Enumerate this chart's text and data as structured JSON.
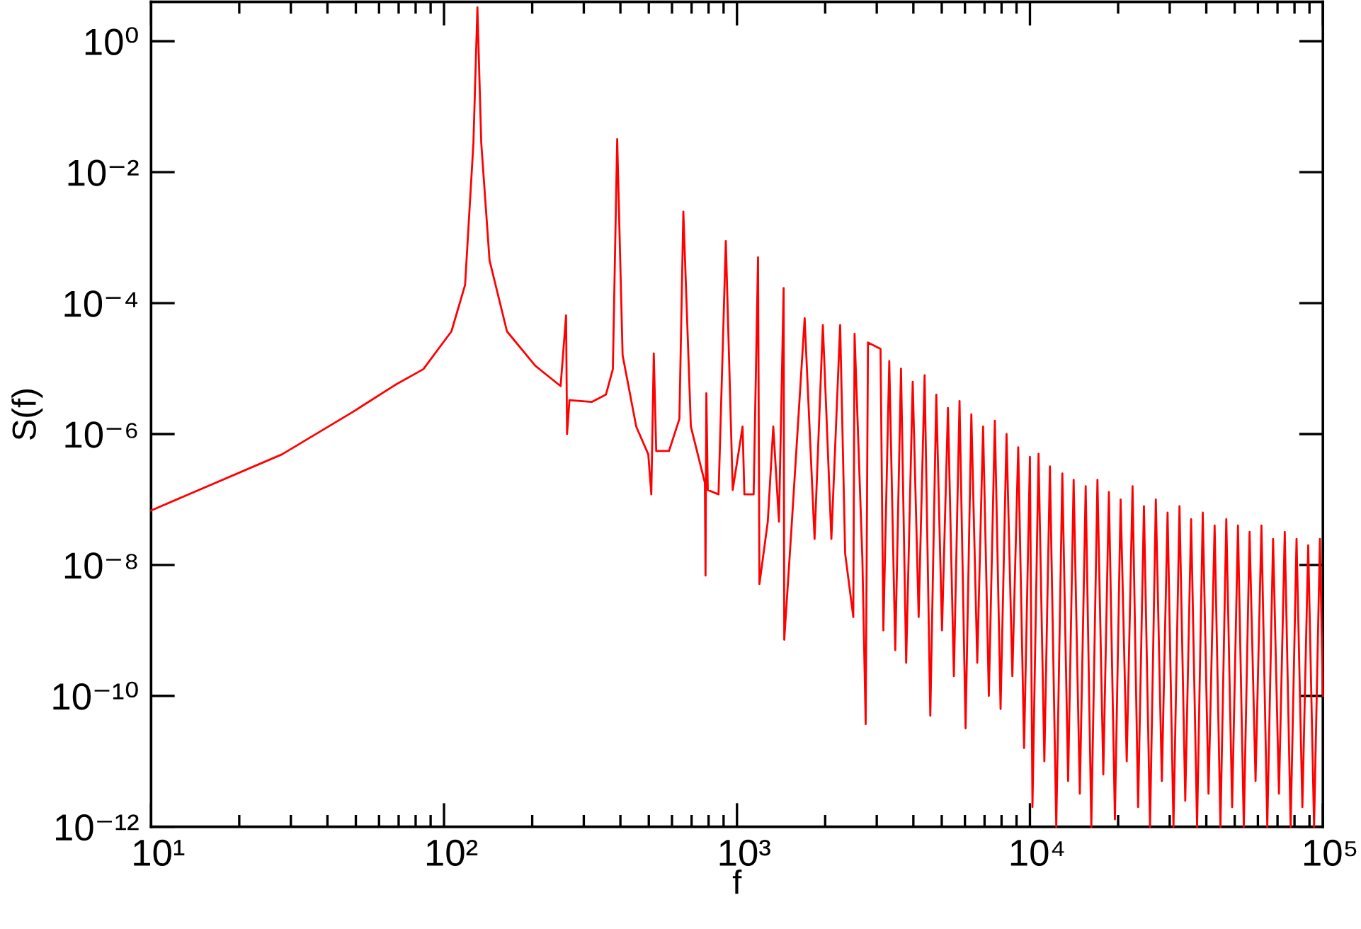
{
  "chart_data": {
    "type": "line",
    "xlabel": "f",
    "ylabel": "S(f)",
    "log": "xy",
    "grid": false,
    "legend": false,
    "marker": "none",
    "line_style": "solid",
    "xlim": [
      10,
      100000
    ],
    "ylim": [
      1e-12,
      4
    ],
    "xticks": [
      {
        "value": 10,
        "label": "10¹"
      },
      {
        "value": 100,
        "label": "10²"
      },
      {
        "value": 1000,
        "label": "10³"
      },
      {
        "value": 10000,
        "label": "10⁴"
      },
      {
        "value": 100000,
        "label": "10⁵"
      }
    ],
    "yticks": [
      {
        "value": 1e-12,
        "label": "10⁻¹²"
      },
      {
        "value": 1e-10,
        "label": "10⁻¹⁰"
      },
      {
        "value": 1e-08,
        "label": "10⁻⁸"
      },
      {
        "value": 1e-06,
        "label": "10⁻⁶"
      },
      {
        "value": 0.0001,
        "label": "10⁻⁴"
      },
      {
        "value": 0.01,
        "label": "10⁻²"
      },
      {
        "value": 1,
        "label": "10⁰"
      }
    ],
    "series": [
      {
        "color": "#ff0000",
        "x": [
          10,
          28,
          49,
          68,
          85,
          106,
          118,
          126,
          130,
          134,
          143,
          164,
          205,
          250,
          261,
          263,
          268,
          320,
          357,
          377,
          390,
          407,
          453,
          498,
          510,
          520,
          530,
          586,
          636,
          656,
          696,
          777,
          781,
          786,
          795,
          865,
          916,
          967,
          1045,
          1060,
          1140,
          1180,
          1193,
          1274,
          1330,
          1391,
          1443,
          1450,
          1532,
          1702,
          1840,
          1964,
          2100,
          2250,
          2340,
          2495,
          2520,
          2680,
          2750,
          2800,
          3090,
          3160,
          3310,
          3470,
          3630,
          3780,
          3980,
          4170,
          4370,
          4570,
          4790,
          5010,
          5250,
          5500,
          5750,
          6030,
          6310,
          6610,
          6920,
          7240,
          7590,
          7940,
          8320,
          8710,
          9120,
          9550,
          10000,
          10200,
          10700,
          11200,
          11700,
          12300,
          12900,
          13500,
          14100,
          14800,
          15500,
          16200,
          17000,
          17800,
          18600,
          19500,
          20400,
          21400,
          22400,
          23400,
          24500,
          25700,
          26900,
          28200,
          29500,
          30900,
          32400,
          33900,
          35500,
          37200,
          38900,
          40700,
          42700,
          44700,
          46800,
          49000,
          51300,
          53700,
          56200,
          58900,
          61700,
          64600,
          67600,
          70800,
          74100,
          77600,
          81300,
          85100,
          89100,
          93300,
          97700,
          100000
        ],
        "values": [
          6.8e-08,
          4.9e-07,
          2.2e-06,
          5.6e-06,
          9.8e-06,
          3.7e-05,
          0.00019,
          0.028,
          3.3,
          0.028,
          0.00045,
          3.7e-05,
          1.1e-05,
          5.4e-06,
          6.5e-05,
          1e-06,
          3.3e-06,
          3.1e-06,
          4e-06,
          9.8e-06,
          0.032,
          1.6e-05,
          1.3e-06,
          4.9e-07,
          1.2e-07,
          1.7e-05,
          5.5e-07,
          5.5e-07,
          1.7e-06,
          0.0025,
          1.3e-06,
          1.8e-07,
          6.9e-09,
          4.2e-06,
          1.4e-07,
          1.2e-07,
          0.00089,
          1.4e-07,
          1.3e-06,
          1.2e-07,
          1.2e-07,
          0.0005,
          5.1e-09,
          4.6e-08,
          1.3e-06,
          4.6e-08,
          0.00017,
          7.2e-10,
          3.2e-08,
          5.9e-05,
          2.5e-08,
          4.6e-05,
          2.5e-08,
          4.6e-05,
          1.5e-08,
          1.6e-09,
          3.4e-05,
          1.2e-08,
          3.7e-11,
          2.5e-05,
          2e-05,
          1e-09,
          1.3e-05,
          5e-10,
          1e-05,
          3.2e-10,
          6.3e-06,
          1.6e-09,
          7.9e-06,
          5e-11,
          4e-06,
          1e-09,
          2.5e-06,
          2e-10,
          3.2e-06,
          3.2e-11,
          2e-06,
          3.2e-10,
          1.3e-06,
          1e-10,
          1.6e-06,
          6.3e-11,
          1e-06,
          2e-10,
          6.3e-07,
          1.6e-11,
          4.5e-07,
          2e-12,
          5e-07,
          1e-11,
          3.2e-07,
          1e-12,
          2.5e-07,
          5e-12,
          2e-07,
          3.2e-12,
          1.6e-07,
          1e-12,
          2e-07,
          6.3e-12,
          1.3e-07,
          1.3e-12,
          1e-07,
          1e-11,
          1.6e-07,
          2e-12,
          7.9e-08,
          1e-12,
          1e-07,
          5e-12,
          6.3e-08,
          1e-12,
          7.9e-08,
          2.5e-12,
          5e-08,
          1e-12,
          6.3e-08,
          3.2e-12,
          4e-08,
          1e-12,
          5e-08,
          2e-12,
          4e-08,
          1e-12,
          3.2e-08,
          5e-12,
          4e-08,
          1e-12,
          2.5e-08,
          3.2e-12,
          3.2e-08,
          1e-12,
          2.5e-08,
          2e-12,
          2e-08,
          1e-12,
          2.5e-08,
          1e-10
        ]
      }
    ]
  }
}
